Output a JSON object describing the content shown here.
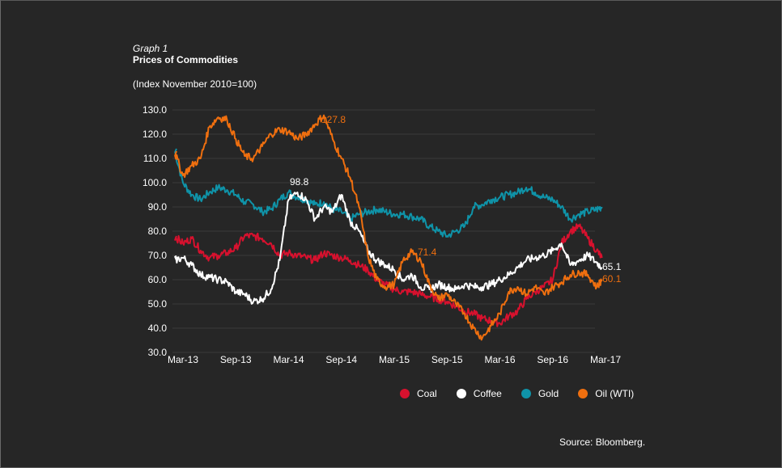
{
  "header": {
    "graph_label": "Graph 1",
    "title": "Prices of Commodities",
    "subtitle": "(Index November 2010=100)"
  },
  "source": "Source: Bloomberg.",
  "colors": {
    "background": "#262626",
    "grid": "#3a3a3a",
    "coal": "#d7112e",
    "coffee": "#ffffff",
    "gold": "#0f93a8",
    "oil": "#ef6f0f"
  },
  "chart_data": {
    "type": "line",
    "title": "Prices of Commodities",
    "subtitle": "(Index November 2010=100)",
    "xlabel": "",
    "ylabel": "",
    "ylim": [
      30,
      130
    ],
    "yticks": [
      "130.0",
      "120.0",
      "110.0",
      "100.0",
      "90.0",
      "80.0",
      "70.0",
      "60.0",
      "50.0",
      "40.0",
      "30.0"
    ],
    "ytick_values": [
      130,
      120,
      110,
      100,
      90,
      80,
      70,
      60,
      50,
      40,
      30
    ],
    "xticks": [
      "Mar-13",
      "Sep-13",
      "Mar-14",
      "Sep-14",
      "Mar-15",
      "Sep-15",
      "Mar-16",
      "Sep-16",
      "Mar-17"
    ],
    "xtick_months": [
      0,
      6,
      12,
      18,
      24,
      30,
      36,
      42,
      48
    ],
    "grid": true,
    "legend_position": "bottom-right",
    "x_months": [
      -1,
      0,
      1,
      2,
      3,
      4,
      5,
      6,
      7,
      8,
      9,
      10,
      11,
      12,
      13,
      14,
      15,
      16,
      17,
      18,
      19,
      20,
      21,
      22,
      23,
      24,
      25,
      26,
      27,
      28,
      29,
      30,
      31,
      32,
      33,
      34,
      35,
      36,
      37,
      38,
      39,
      40,
      41,
      42,
      43,
      44,
      45,
      46,
      47,
      47.6
    ],
    "series": [
      {
        "name": "Coal",
        "color": "#d7112e",
        "values": [
          78,
          75,
          77,
          72,
          69,
          70,
          71,
          73,
          78,
          78,
          77,
          75,
          70,
          71,
          70,
          69,
          68,
          71,
          70,
          69,
          68,
          66,
          64,
          60,
          58,
          56,
          55,
          55,
          54,
          53,
          52,
          51,
          49,
          47,
          46,
          44,
          43,
          42,
          45,
          47,
          52,
          55,
          57,
          60,
          75,
          80,
          82,
          77,
          72,
          69.0
        ]
      },
      {
        "name": "Coffee",
        "color": "#ffffff",
        "values": [
          68,
          69,
          66,
          62,
          61,
          60,
          59,
          55,
          54,
          51,
          52,
          56,
          68,
          93,
          96,
          93,
          85,
          90,
          88,
          95,
          84,
          80,
          72,
          68,
          66,
          64,
          60,
          62,
          57,
          56,
          58,
          57,
          56,
          58,
          57,
          57,
          58,
          60,
          62,
          65,
          68,
          69,
          70,
          72,
          75,
          66,
          68,
          70,
          67,
          65.1
        ]
      },
      {
        "name": "Gold",
        "color": "#0f93a8",
        "values": [
          114,
          100,
          95,
          93,
          96,
          98,
          97,
          95,
          92,
          91,
          88,
          89,
          93,
          96,
          94,
          93,
          91,
          92,
          89,
          88,
          85,
          87,
          88,
          89,
          88,
          87,
          87,
          86,
          85,
          82,
          80,
          78,
          80,
          82,
          90,
          91,
          93,
          94,
          95,
          96,
          98,
          96,
          94,
          93,
          90,
          85,
          87,
          88,
          89,
          90
        ]
      },
      {
        "name": "Oil (WTI)",
        "color": "#ef6f0f",
        "values": [
          113,
          103,
          107,
          110,
          123,
          127,
          126,
          118,
          111,
          110,
          115,
          120,
          122,
          121,
          118,
          120,
          124,
          127.8,
          118,
          110,
          102,
          90,
          70,
          60,
          57,
          58,
          68,
          71.4,
          68,
          58,
          52,
          54,
          50,
          46,
          40,
          36,
          41,
          46,
          55,
          57,
          54,
          57,
          54,
          57,
          59,
          62,
          63,
          62,
          57,
          60.1
        ]
      }
    ],
    "annotations": [
      {
        "text": "127.8",
        "series": "Oil (WTI)",
        "value": 127.8,
        "at": "Jul-14 peak"
      },
      {
        "text": "98.8",
        "series": "Coffee",
        "value": 98.8,
        "at": "Mar-14 peak"
      },
      {
        "text": "71.4",
        "series": "Oil (WTI)",
        "value": 71.4,
        "at": "May-15 peak"
      },
      {
        "text": "65.1",
        "series": "Coffee",
        "value": 65.1,
        "at": "end"
      },
      {
        "text": "60.1",
        "series": "Oil (WTI)",
        "value": 60.1,
        "at": "end"
      }
    ]
  },
  "legend": [
    {
      "label": "Coal",
      "color": "#d7112e"
    },
    {
      "label": "Coffee",
      "color": "#ffffff"
    },
    {
      "label": "Gold",
      "color": "#0f93a8"
    },
    {
      "label": "Oil (WTI)",
      "color": "#ef6f0f"
    }
  ]
}
